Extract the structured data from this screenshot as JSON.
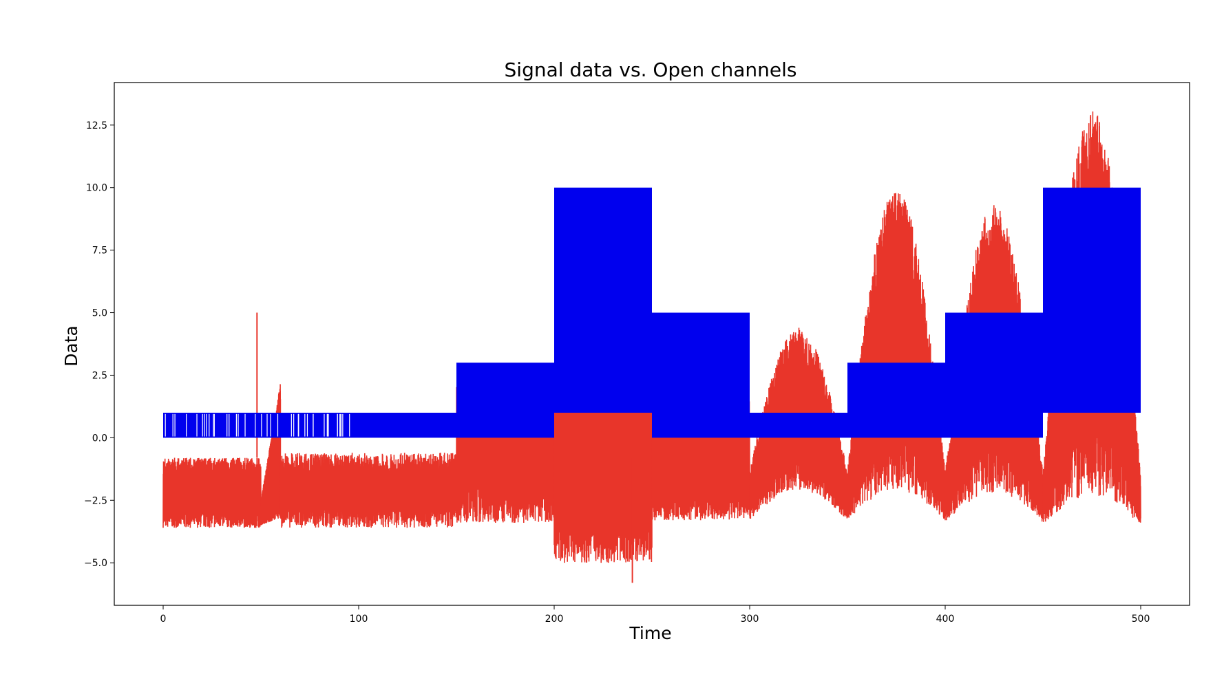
{
  "chart_data": {
    "type": "line",
    "title": "Signal data vs. Open channels",
    "xlabel": "Time",
    "ylabel": "Data",
    "xlim": [
      -25,
      525
    ],
    "ylim": [
      -6.7,
      14.2
    ],
    "xticks": [
      "0",
      "100",
      "200",
      "300",
      "400",
      "500"
    ],
    "xtick_values": [
      0,
      100,
      200,
      300,
      400,
      500
    ],
    "yticks": [
      "−5.0",
      "−2.5",
      "0.0",
      "2.5",
      "5.0",
      "7.5",
      "10.0",
      "12.5"
    ],
    "ytick_values": [
      -5.0,
      -2.5,
      0.0,
      2.5,
      5.0,
      7.5,
      10.0,
      12.5
    ],
    "grid": false,
    "series": [
      {
        "color": "#e8352a",
        "description": "signal",
        "segments": [
          {
            "x0": 0,
            "x1": 50,
            "kind": "flat",
            "low": -3.6,
            "high": -0.8
          },
          {
            "x0": 50,
            "x1": 60,
            "kind": "ramp",
            "low": -3.5,
            "high": 2.2
          },
          {
            "x0": 60,
            "x1": 150,
            "kind": "flat",
            "low": -3.6,
            "high": -0.6
          },
          {
            "x0": 150,
            "x1": 200,
            "kind": "flat",
            "low": -3.4,
            "high": 3.0
          },
          {
            "x0": 200,
            "x1": 250,
            "kind": "flat",
            "low": -5.0,
            "high": 2.9
          },
          {
            "x0": 250,
            "x1": 300,
            "kind": "flat",
            "low": -3.3,
            "high": 1.9
          },
          {
            "x0": 300,
            "x1": 350,
            "kind": "hump",
            "low": -3.3,
            "high": 4.4
          },
          {
            "x0": 350,
            "x1": 400,
            "kind": "hump",
            "low": -3.3,
            "high": 10.0
          },
          {
            "x0": 400,
            "x1": 450,
            "kind": "hump",
            "low": -3.4,
            "high": 9.3
          },
          {
            "x0": 450,
            "x1": 500,
            "kind": "hump",
            "low": -3.5,
            "high": 13.2
          }
        ],
        "spikes": [
          {
            "x": 48,
            "y": 5.0
          },
          {
            "x": 240,
            "y": -5.8
          }
        ]
      },
      {
        "color": "#0000ee",
        "description": "open channels",
        "segments": [
          {
            "x0": 0,
            "x1": 150,
            "low": 0,
            "high": 1
          },
          {
            "x0": 150,
            "x1": 200,
            "low": 0,
            "high": 3
          },
          {
            "x0": 200,
            "x1": 250,
            "low": 1,
            "high": 10
          },
          {
            "x0": 250,
            "x1": 300,
            "low": 0,
            "high": 5
          },
          {
            "x0": 300,
            "x1": 350,
            "low": 0,
            "high": 1
          },
          {
            "x0": 350,
            "x1": 400,
            "low": 0,
            "high": 3
          },
          {
            "x0": 400,
            "x1": 450,
            "low": 0,
            "high": 5
          },
          {
            "x0": 450,
            "x1": 500,
            "low": 1,
            "high": 10
          }
        ]
      }
    ]
  }
}
